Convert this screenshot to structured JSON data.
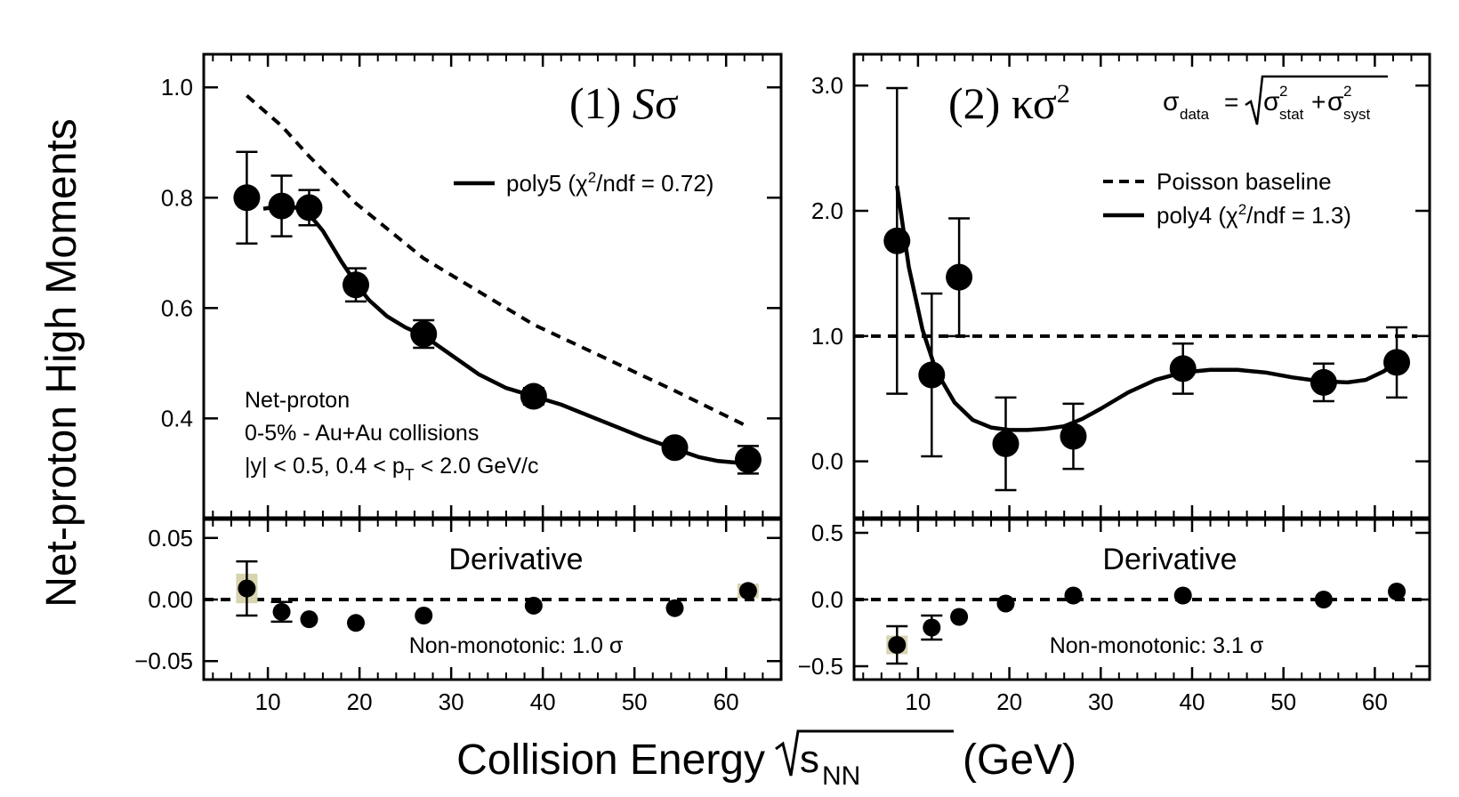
{
  "figure": {
    "ylabel": "Net-proton High Moments",
    "xlabel_prefix": "Collision Energy",
    "xlabel_sqrt_base": "s",
    "xlabel_sqrt_sub": "NN",
    "xlabel_unit": "(GeV)",
    "colors": {
      "ink": "#000000",
      "sys_band": "#d8d4b0"
    }
  },
  "chart_data": [
    {
      "type": "scatter",
      "panel": "(1) Sσ",
      "title_num": "(1)",
      "title_sym": "S",
      "title_sigma": "σ",
      "xlim": [
        3,
        66
      ],
      "ylim": [
        0.22,
        1.06
      ],
      "x_ticks": [
        10,
        20,
        30,
        40,
        50,
        60
      ],
      "x_tick_labels": [
        "10",
        "20",
        "30",
        "40",
        "50",
        "60"
      ],
      "y_ticks": [
        0.4,
        0.6,
        0.8,
        1.0
      ],
      "y_tick_labels": [
        "0.4",
        "0.6",
        "0.8",
        "1.0"
      ],
      "legend_fit_prefix": "poly5 (χ",
      "legend_fit_sup": "2",
      "legend_fit_suffix": "/ndf = 0.72)",
      "note_line1": "Net-proton",
      "note_line2": "0-5% - Au+Au collisions",
      "note_line3a": "|y| < 0.5, 0.4 < p",
      "note_line3sub": "T",
      "note_line3b": " < 2.0 GeV/c",
      "x": [
        7.7,
        11.5,
        14.5,
        19.6,
        27,
        39,
        54.4,
        62.4
      ],
      "y": [
        0.8,
        0.785,
        0.782,
        0.642,
        0.553,
        0.44,
        0.347,
        0.325
      ],
      "yerr": [
        0.083,
        0.055,
        0.032,
        0.03,
        0.025,
        0.015,
        0.012,
        0.025
      ],
      "baseline": {
        "x": [
          7.7,
          11.5,
          14.5,
          19.6,
          27,
          39,
          54.4,
          62.4
        ],
        "y": [
          0.985,
          0.93,
          0.875,
          0.79,
          0.69,
          0.57,
          0.45,
          0.385
        ]
      },
      "fit": {
        "x": [
          9.5,
          11.5,
          13,
          14.5,
          16,
          18,
          19.6,
          21,
          23,
          25,
          27,
          30,
          33,
          36,
          39,
          42,
          45,
          48,
          51,
          54.4,
          57,
          59,
          61,
          62.4
        ],
        "y": [
          0.78,
          0.785,
          0.782,
          0.77,
          0.74,
          0.685,
          0.645,
          0.615,
          0.585,
          0.565,
          0.55,
          0.515,
          0.48,
          0.455,
          0.44,
          0.425,
          0.405,
          0.385,
          0.365,
          0.345,
          0.33,
          0.323,
          0.32,
          0.325
        ]
      },
      "derivative": {
        "title": "Derivative",
        "note": "Non-monotonic: 1.0 σ",
        "ylim": [
          -0.065,
          0.065
        ],
        "y_ticks": [
          -0.05,
          0.0,
          0.05
        ],
        "y_tick_labels": [
          "−0.05",
          "0.00",
          "0.05"
        ],
        "x": [
          7.7,
          11.5,
          14.5,
          19.6,
          27,
          39,
          54.4,
          62.4
        ],
        "y": [
          0.009,
          -0.01,
          -0.016,
          -0.019,
          -0.013,
          -0.005,
          -0.007,
          0.007
        ],
        "yerr": [
          0.022,
          0.008,
          0,
          0,
          0,
          0,
          0,
          0
        ],
        "sys": [
          0.012,
          0,
          0,
          0,
          0,
          0,
          0,
          0.006
        ]
      }
    },
    {
      "type": "scatter",
      "panel": "(2) κσ²",
      "title_num": "(2)",
      "title_sym": "κσ",
      "title_sup": "2",
      "xlim": [
        3,
        66
      ],
      "ylim": [
        -0.45,
        3.25
      ],
      "x_ticks": [
        10,
        20,
        30,
        40,
        50,
        60
      ],
      "x_tick_labels": [
        "10",
        "20",
        "30",
        "40",
        "50",
        "60"
      ],
      "y_ticks": [
        0.0,
        1.0,
        2.0,
        3.0
      ],
      "y_tick_labels": [
        "0.0",
        "1.0",
        "2.0",
        "3.0"
      ],
      "formula_lhs": "σ",
      "formula_lhs_sub": "data",
      "formula_eq": "=",
      "formula_term1": "σ",
      "formula_term1_sup": "2",
      "formula_term1_sub": "stat",
      "formula_plus": "+",
      "formula_term2": "σ",
      "formula_term2_sup": "2",
      "formula_term2_sub": "syst",
      "legend_baseline": "Poisson baseline",
      "legend_fit_prefix": "poly4 (χ",
      "legend_fit_sup": "2",
      "legend_fit_suffix": "/ndf = 1.3)",
      "baseline_value": 1.0,
      "x": [
        7.7,
        11.5,
        14.5,
        19.6,
        27,
        39,
        54.4,
        62.4
      ],
      "y": [
        1.76,
        0.69,
        1.47,
        0.14,
        0.2,
        0.74,
        0.63,
        0.79
      ],
      "yerr": [
        1.22,
        0.65,
        0.47,
        0.37,
        0.26,
        0.2,
        0.15,
        0.28
      ],
      "fit": {
        "x": [
          7.7,
          9,
          10.5,
          12,
          14,
          16,
          18,
          20,
          22,
          24,
          26,
          28,
          30,
          33,
          36,
          39,
          42,
          45,
          48,
          51,
          54,
          57,
          59,
          61,
          62.4
        ],
        "y": [
          2.2,
          1.55,
          1.05,
          0.72,
          0.47,
          0.33,
          0.27,
          0.25,
          0.25,
          0.26,
          0.28,
          0.34,
          0.42,
          0.55,
          0.65,
          0.71,
          0.73,
          0.73,
          0.71,
          0.67,
          0.64,
          0.63,
          0.65,
          0.72,
          0.8
        ]
      },
      "derivative": {
        "title": "Derivative",
        "note": "Non-monotonic: 3.1 σ",
        "ylim": [
          -0.6,
          0.6
        ],
        "y_ticks": [
          -0.5,
          0.0,
          0.5
        ],
        "y_tick_labels": [
          "−0.5",
          "0.0",
          "0.5"
        ],
        "x": [
          7.7,
          11.5,
          14.5,
          19.6,
          27,
          39,
          54.4,
          62.4
        ],
        "y": [
          -0.34,
          -0.21,
          -0.13,
          -0.03,
          0.03,
          0.03,
          0.0,
          0.06
        ],
        "yerr": [
          0.14,
          0.09,
          0,
          0,
          0,
          0,
          0,
          0
        ],
        "sys": [
          0.07,
          0,
          0,
          0,
          0,
          0,
          0,
          0
        ]
      }
    }
  ]
}
